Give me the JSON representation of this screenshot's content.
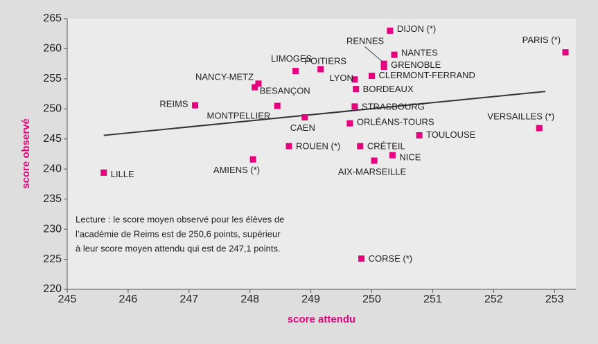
{
  "chart_data": {
    "type": "scatter",
    "xlabel": "score attendu",
    "ylabel": "score observé",
    "color": "#e5007d",
    "xlim": [
      245,
      253.35
    ],
    "ylim": [
      220,
      265
    ],
    "xticks": [
      245,
      246,
      247,
      248,
      249,
      250,
      251,
      252,
      253
    ],
    "yticks": [
      220,
      225,
      230,
      235,
      240,
      245,
      250,
      255,
      260,
      265
    ],
    "labels": [
      "LILLE",
      "REIMS",
      "AMIENS (*)",
      "ROUEN (*)",
      "MONTPELLIER",
      "CAEN",
      "NANCY-METZ",
      "BESANÇON",
      "LIMOGES",
      "POITIERS",
      "LYON",
      "BORDEAUX",
      "STRASBOURG",
      "ORLÉANS-TOURS",
      "CRÉTEIL",
      "AIX-MARSEILLE",
      "NICE",
      "CORSE (*)",
      "DIJON (*)",
      "NANTES",
      "RENNES",
      "GRENOBLE",
      "CLERMONT-FERRAND",
      "TOULOUSE",
      "VERSAILLES (*)",
      "PARIS (*)"
    ],
    "x": [
      245.6,
      247.1,
      248.05,
      248.64,
      248.45,
      248.9,
      248.14,
      248.08,
      248.75,
      249.16,
      249.72,
      249.74,
      249.72,
      249.64,
      249.81,
      250.04,
      250.34,
      249.83,
      250.3,
      250.37,
      250.2,
      250.2,
      250.0,
      250.78,
      252.75,
      253.18
    ],
    "values": [
      239.4,
      250.6,
      241.6,
      243.8,
      250.5,
      248.6,
      254.2,
      253.6,
      256.3,
      256.6,
      254.9,
      253.3,
      250.4,
      247.6,
      243.8,
      241.4,
      242.3,
      225.1,
      263.0,
      259.0,
      257.5,
      257.0,
      255.5,
      245.6,
      246.8,
      259.4
    ],
    "trend_line": {
      "x": [
        245.6,
        252.85
      ],
      "values": [
        245.6,
        252.9
      ]
    },
    "note": [
      "Lecture : le score moyen observé pour les élèves de",
      "l’académie de Reims est de 250,6 points, supérieur",
      "à leur score moyen attendu qui est de 247,1 points."
    ]
  }
}
